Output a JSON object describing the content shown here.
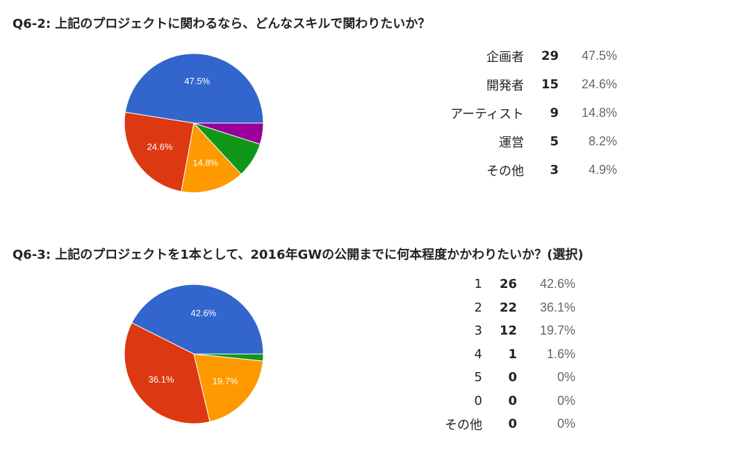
{
  "chart_data": [
    {
      "type": "pie",
      "title": "Q6-2: 上記のプロジェクトに関わるなら、どんなスキルで関わりたいか？",
      "slices": [
        {
          "label": "企画者",
          "count": "29",
          "percent": "47.5%",
          "value": 47.5,
          "color": "#3366cc"
        },
        {
          "label": "開発者",
          "count": "15",
          "percent": "24.6%",
          "value": 24.6,
          "color": "#dc3912"
        },
        {
          "label": "アーティスト",
          "count": "9",
          "percent": "14.8%",
          "value": 14.8,
          "color": "#ff9900"
        },
        {
          "label": "運営",
          "count": "5",
          "percent": "8.2%",
          "value": 8.2,
          "color": "#109618"
        },
        {
          "label": "その他",
          "count": "3",
          "percent": "4.9%",
          "value": 4.9,
          "color": "#990099"
        }
      ]
    },
    {
      "type": "pie",
      "title": "Q6-3: 上記のプロジェクトを1本として、2016年GWの公開までに何本程度かかわりたいか？(選択)",
      "slices": [
        {
          "label": "1",
          "count": "26",
          "percent": "42.6%",
          "value": 42.6,
          "color": "#3366cc"
        },
        {
          "label": "2",
          "count": "22",
          "percent": "36.1%",
          "value": 36.1,
          "color": "#dc3912"
        },
        {
          "label": "3",
          "count": "12",
          "percent": "19.7%",
          "value": 19.7,
          "color": "#ff9900"
        },
        {
          "label": "4",
          "count": "1",
          "percent": "1.6%",
          "value": 1.6,
          "color": "#109618"
        },
        {
          "label": "5",
          "count": "0",
          "percent": "0%",
          "value": 0,
          "color": "#990099"
        },
        {
          "label": "0",
          "count": "0",
          "percent": "0%",
          "value": 0,
          "color": "#0099c6"
        },
        {
          "label": "その他",
          "count": "0",
          "percent": "0%",
          "value": 0,
          "color": "#dd4477"
        }
      ]
    }
  ]
}
